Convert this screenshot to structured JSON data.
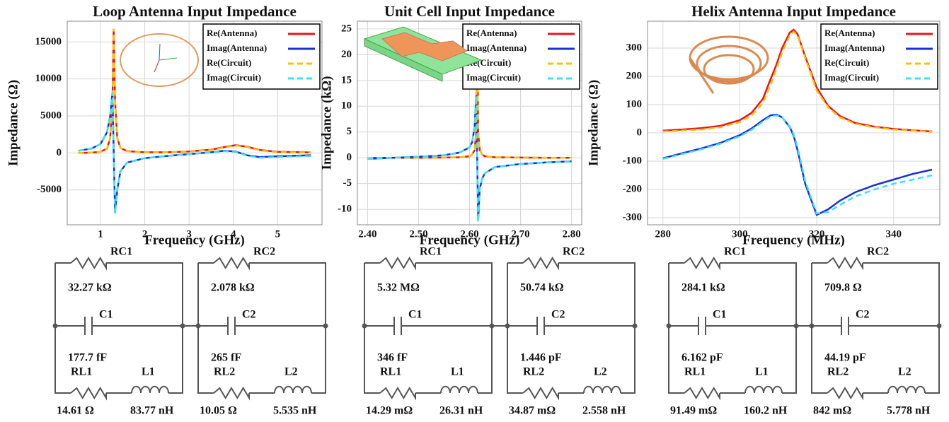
{
  "chart_data": [
    {
      "type": "line",
      "title": "Loop Antenna Input Impedance",
      "xlabel": "Frequency (GHz)",
      "ylabel": "Impedance (Ω)",
      "xlim": [
        0.25,
        6.0
      ],
      "ylim": [
        -9700,
        17800
      ],
      "xticks": [
        1,
        2,
        3,
        4,
        5
      ],
      "yticks": [
        -5000,
        0,
        5000,
        10000,
        15000
      ],
      "grid": true,
      "legend": "upper right",
      "x": [
        0.5,
        0.8,
        1.0,
        1.15,
        1.22,
        1.27,
        1.3,
        1.33,
        1.38,
        1.45,
        1.6,
        2.0,
        2.5,
        3.0,
        3.5,
        3.8,
        4.05,
        4.3,
        4.6,
        5.0,
        5.75
      ],
      "series": [
        {
          "name": "Re(Antenna)",
          "color": "#e8141b",
          "dashed": false,
          "values": [
            0,
            50,
            150,
            600,
            2000,
            7000,
            16800,
            7000,
            2000,
            700,
            250,
            100,
            100,
            200,
            450,
            800,
            1050,
            850,
            400,
            150,
            80
          ]
        },
        {
          "name": "Imag(Antenna)",
          "color": "#1a2fd6",
          "dashed": false,
          "values": [
            300,
            600,
            1200,
            2800,
            5000,
            8200,
            0,
            -8000,
            -5000,
            -2500,
            -1300,
            -700,
            -400,
            -150,
            100,
            300,
            200,
            -300,
            -550,
            -450,
            -300
          ]
        },
        {
          "name": "Re(Circuit)",
          "color": "#ffc000",
          "dashed": true,
          "values": [
            0,
            50,
            150,
            600,
            2000,
            7000,
            16800,
            7000,
            2000,
            700,
            250,
            100,
            100,
            200,
            400,
            750,
            1000,
            800,
            350,
            120,
            50
          ]
        },
        {
          "name": "Imag(Circuit)",
          "color": "#38e3f2",
          "dashed": true,
          "values": [
            300,
            600,
            1200,
            2800,
            5000,
            8200,
            0,
            -8200,
            -5000,
            -2500,
            -1300,
            -700,
            -400,
            -150,
            80,
            250,
            150,
            -350,
            -650,
            -550,
            -400
          ]
        }
      ]
    },
    {
      "type": "line",
      "title": "Unit Cell Input Impedance",
      "xlabel": "Frequency (GHz)",
      "ylabel": "Impedance (kΩ)",
      "xlim": [
        2.38,
        2.82
      ],
      "ylim": [
        -13,
        26.5
      ],
      "xticks": [
        {
          "value": 2.4,
          "label": "2.40"
        },
        {
          "value": 2.5,
          "label": "2.50"
        },
        {
          "value": 2.6,
          "label": "2.60"
        },
        {
          "value": 2.7,
          "label": "2.70"
        },
        {
          "value": 2.8,
          "label": "2.80"
        }
      ],
      "yticks": [
        -10,
        -5,
        0,
        5,
        10,
        15,
        20,
        25
      ],
      "grid": true,
      "legend": "upper right",
      "x": [
        2.4,
        2.45,
        2.5,
        2.55,
        2.58,
        2.6,
        2.605,
        2.61,
        2.613,
        2.615,
        2.617,
        2.62,
        2.625,
        2.63,
        2.65,
        2.7,
        2.75,
        2.8
      ],
      "series": [
        {
          "name": "Re(Antenna)",
          "color": "#e8141b",
          "dashed": false,
          "values": [
            0,
            0,
            0,
            0.05,
            0.1,
            0.3,
            0.6,
            1.5,
            5,
            25.5,
            5,
            1.5,
            0.6,
            0.3,
            0.1,
            0.05,
            0,
            0
          ]
        },
        {
          "name": "Imag(Antenna)",
          "color": "#1a2fd6",
          "dashed": false,
          "values": [
            -0.2,
            0,
            0.2,
            0.5,
            1,
            2,
            3,
            6,
            12,
            0,
            -12,
            -6,
            -4,
            -3,
            -1.8,
            -1.2,
            -0.9,
            -0.7
          ]
        },
        {
          "name": "Re(Circuit)",
          "color": "#ffc000",
          "dashed": true,
          "values": [
            0,
            0,
            0,
            0.05,
            0.1,
            0.3,
            0.6,
            1.5,
            5,
            25.5,
            5,
            1.5,
            0.6,
            0.3,
            0.1,
            0.05,
            0,
            0
          ]
        },
        {
          "name": "Imag(Circuit)",
          "color": "#38e3f2",
          "dashed": true,
          "values": [
            -0.2,
            0,
            0.2,
            0.5,
            1,
            2,
            3,
            6,
            12,
            0,
            -12.5,
            -6,
            -4,
            -3,
            -1.8,
            -1.2,
            -0.9,
            -0.7
          ]
        }
      ]
    },
    {
      "type": "line",
      "title": "Helix Antenna Input Impedance",
      "xlabel": "Frequency (MHz)",
      "ylabel": "Impedance (Ω)",
      "xlim": [
        276,
        352
      ],
      "ylim": [
        -325,
        395
      ],
      "xticks": [
        280,
        300,
        320,
        340
      ],
      "yticks": [
        -300,
        -200,
        -100,
        0,
        100,
        200,
        300
      ],
      "grid": true,
      "legend": "upper right",
      "x": [
        280,
        285,
        290,
        295,
        300,
        303,
        306,
        308,
        309.5,
        311,
        313,
        314,
        315,
        317,
        320,
        323,
        326,
        330,
        335,
        340,
        345,
        350
      ],
      "series": [
        {
          "name": "Re(Antenna)",
          "color": "#e8141b",
          "dashed": false,
          "values": [
            8,
            12,
            17,
            25,
            45,
            70,
            120,
            190,
            240,
            300,
            355,
            365,
            350,
            270,
            160,
            95,
            60,
            35,
            22,
            14,
            9,
            5
          ]
        },
        {
          "name": "Imag(Antenna)",
          "color": "#1a2fd6",
          "dashed": false,
          "values": [
            -90,
            -72,
            -55,
            -35,
            -8,
            15,
            45,
            62,
            65,
            55,
            20,
            -10,
            -60,
            -180,
            -290,
            -270,
            -240,
            -210,
            -185,
            -165,
            -145,
            -130
          ]
        },
        {
          "name": "Re(Circuit)",
          "color": "#ffc000",
          "dashed": true,
          "values": [
            5,
            8,
            12,
            20,
            38,
            60,
            105,
            170,
            225,
            285,
            345,
            358,
            345,
            265,
            150,
            90,
            55,
            32,
            20,
            12,
            8,
            4
          ]
        },
        {
          "name": "Imag(Circuit)",
          "color": "#38e3f2",
          "dashed": true,
          "values": [
            -92,
            -75,
            -58,
            -38,
            -12,
            10,
            40,
            58,
            62,
            55,
            22,
            -5,
            -50,
            -170,
            -285,
            -280,
            -255,
            -225,
            -200,
            -180,
            -165,
            -150
          ]
        }
      ]
    }
  ],
  "circuits": [
    {
      "blocks": [
        {
          "rc": "RC1",
          "rc_value": "32.27 kΩ",
          "c": "C1",
          "c_value": "177.7 fF",
          "rl": "RL1",
          "l": "L1",
          "rl_value": "14.61 Ω",
          "l_value": "83.77 nH"
        },
        {
          "rc": "RC2",
          "rc_value": "2.078 kΩ",
          "c": "C2",
          "c_value": "265 fF",
          "rl": "RL2",
          "l": "L2",
          "rl_value": "10.05 Ω",
          "l_value": "5.535 nH"
        }
      ]
    },
    {
      "blocks": [
        {
          "rc": "RC1",
          "rc_value": "5.32 MΩ",
          "c": "C1",
          "c_value": "346 fF",
          "rl": "RL1",
          "l": "L1",
          "rl_value": "14.29 mΩ",
          "l_value": "26.31 nH"
        },
        {
          "rc": "RC2",
          "rc_value": "50.74 kΩ",
          "c": "C2",
          "c_value": "1.446 pF",
          "rl": "RL2",
          "l": "L2",
          "rl_value": "34.87 mΩ",
          "l_value": "2.558 nH"
        }
      ]
    },
    {
      "blocks": [
        {
          "rc": "RC1",
          "rc_value": "284.1 kΩ",
          "c": "C1",
          "c_value": "6.162 pF",
          "rl": "RL1",
          "l": "L1",
          "rl_value": "91.49 mΩ",
          "l_value": "160.2 nH"
        },
        {
          "rc": "RC2",
          "rc_value": "709.8 Ω",
          "c": "C2",
          "c_value": "44.19 pF",
          "rl": "RL2",
          "l": "L2",
          "rl_value": "842 mΩ",
          "l_value": "5.778 nH"
        }
      ]
    }
  ]
}
